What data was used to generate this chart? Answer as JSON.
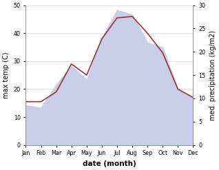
{
  "months": [
    "Jan",
    "Feb",
    "Mar",
    "Apr",
    "May",
    "Jun",
    "Jul",
    "Aug",
    "Sep",
    "Oct",
    "Nov",
    "Dec"
  ],
  "temp": [
    15.5,
    15.5,
    19,
    29,
    25,
    38,
    45.5,
    46,
    40,
    33,
    20,
    17
  ],
  "precip": [
    8.5,
    8,
    13,
    17,
    14,
    23,
    29,
    28,
    22,
    21,
    12,
    10
  ],
  "temp_color": "#993333",
  "precip_fill_color": "#c8cde8",
  "bg_color": "#ffffff",
  "ylabel_left": "max temp (C)",
  "ylabel_right": "med. precipitation (kg/m2)",
  "xlabel": "date (month)",
  "ylim_left": [
    0,
    50
  ],
  "ylim_right": [
    0,
    30
  ],
  "yticks_left": [
    0,
    10,
    20,
    30,
    40,
    50
  ],
  "yticks_right": [
    0,
    5,
    10,
    15,
    20,
    25,
    30
  ]
}
